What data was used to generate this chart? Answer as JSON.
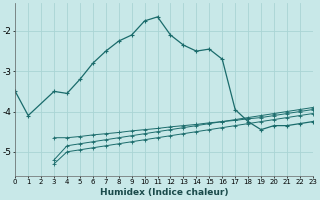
{
  "xlabel": "Humidex (Indice chaleur)",
  "background_color": "#c8e8e8",
  "grid_color": "#aad4d4",
  "line_color": "#1a6b6b",
  "x_min": 0,
  "x_max": 23,
  "y_min": -5.6,
  "y_max": -1.3,
  "yticks": [
    -2,
    -3,
    -4,
    -5
  ],
  "xticks": [
    0,
    1,
    2,
    3,
    4,
    5,
    6,
    7,
    8,
    9,
    10,
    11,
    12,
    13,
    14,
    15,
    16,
    17,
    18,
    19,
    20,
    21,
    22,
    23
  ],
  "series": [
    {
      "x": [
        0,
        1,
        3,
        4,
        5,
        6,
        7,
        8,
        9,
        10,
        11,
        12,
        13,
        14,
        15,
        16,
        17,
        18,
        19,
        20,
        21,
        22,
        23
      ],
      "y": [
        -3.5,
        -4.1,
        -3.5,
        -3.55,
        -3.2,
        -2.8,
        -2.5,
        -2.25,
        -2.1,
        -1.75,
        -1.65,
        -2.1,
        -2.35,
        -2.5,
        -2.45,
        -2.7,
        -3.95,
        -4.25,
        -4.45,
        -4.35,
        -4.35,
        -4.3,
        -4.25
      ]
    },
    {
      "x": [
        3,
        4,
        5,
        6,
        7,
        8,
        9,
        10,
        11,
        12,
        13,
        14,
        15,
        16,
        17,
        18,
        19,
        20,
        21,
        22,
        23
      ],
      "y": [
        -4.65,
        -4.65,
        -4.62,
        -4.58,
        -4.55,
        -4.52,
        -4.48,
        -4.45,
        -4.42,
        -4.38,
        -4.35,
        -4.32,
        -4.28,
        -4.25,
        -4.22,
        -4.18,
        -4.15,
        -4.1,
        -4.05,
        -4.0,
        -3.95
      ]
    },
    {
      "x": [
        3,
        4,
        5,
        6,
        7,
        8,
        9,
        10,
        11,
        12,
        13,
        14,
        15,
        16,
        17,
        18,
        19,
        20,
        21,
        22,
        23
      ],
      "y": [
        -5.2,
        -4.85,
        -4.8,
        -4.75,
        -4.7,
        -4.65,
        -4.6,
        -4.55,
        -4.5,
        -4.45,
        -4.4,
        -4.35,
        -4.3,
        -4.25,
        -4.2,
        -4.15,
        -4.1,
        -4.05,
        -4.0,
        -3.95,
        -3.9
      ]
    },
    {
      "x": [
        3,
        4,
        5,
        6,
        7,
        8,
        9,
        10,
        11,
        12,
        13,
        14,
        15,
        16,
        17,
        18,
        19,
        20,
        21,
        22,
        23
      ],
      "y": [
        -5.3,
        -5.0,
        -4.95,
        -4.9,
        -4.85,
        -4.8,
        -4.75,
        -4.7,
        -4.65,
        -4.6,
        -4.55,
        -4.5,
        -4.45,
        -4.4,
        -4.35,
        -4.3,
        -4.25,
        -4.2,
        -4.15,
        -4.1,
        -4.05
      ]
    }
  ]
}
